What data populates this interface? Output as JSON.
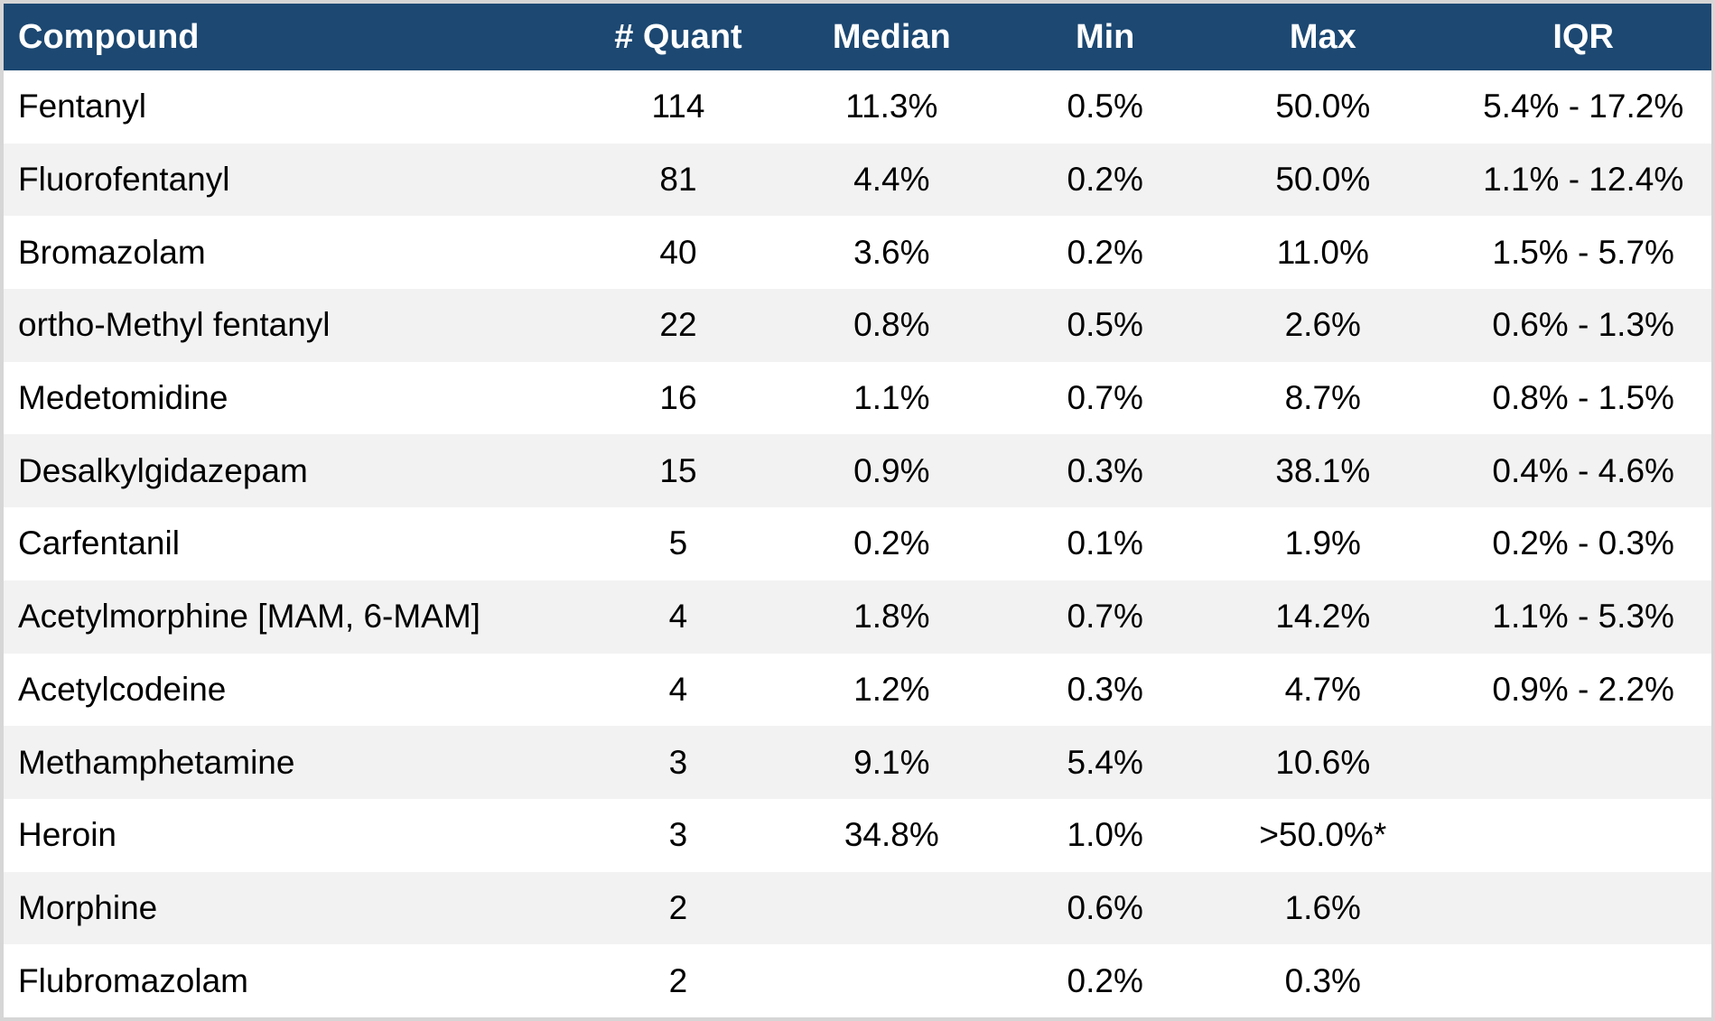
{
  "colors": {
    "header_bg": "#1c4872",
    "header_text": "#ffffff",
    "row_bg": "#ffffff",
    "row_alt_bg": "#f2f2f2",
    "outer_border": "#d6d6d6",
    "body_text": "#000000"
  },
  "chart_data": {
    "type": "table",
    "title": "",
    "columns": [
      {
        "key": "compound",
        "label": "Compound",
        "align": "left"
      },
      {
        "key": "quant",
        "label": "# Quant",
        "align": "center"
      },
      {
        "key": "median",
        "label": "Median",
        "align": "center"
      },
      {
        "key": "min",
        "label": "Min",
        "align": "center"
      },
      {
        "key": "max",
        "label": "Max",
        "align": "center"
      },
      {
        "key": "iqr",
        "label": "IQR",
        "align": "center"
      }
    ],
    "rows": [
      {
        "compound": "Fentanyl",
        "quant": "114",
        "median": "11.3%",
        "min": "0.5%",
        "max": "50.0%",
        "iqr": "5.4% - 17.2%"
      },
      {
        "compound": "Fluorofentanyl",
        "quant": "81",
        "median": "4.4%",
        "min": "0.2%",
        "max": "50.0%",
        "iqr": "1.1% - 12.4%"
      },
      {
        "compound": "Bromazolam",
        "quant": "40",
        "median": "3.6%",
        "min": "0.2%",
        "max": "11.0%",
        "iqr": "1.5% - 5.7%"
      },
      {
        "compound": "ortho-Methyl fentanyl",
        "quant": "22",
        "median": "0.8%",
        "min": "0.5%",
        "max": "2.6%",
        "iqr": "0.6% - 1.3%"
      },
      {
        "compound": "Medetomidine",
        "quant": "16",
        "median": "1.1%",
        "min": "0.7%",
        "max": "8.7%",
        "iqr": "0.8% - 1.5%"
      },
      {
        "compound": "Desalkylgidazepam",
        "quant": "15",
        "median": "0.9%",
        "min": "0.3%",
        "max": "38.1%",
        "iqr": "0.4% - 4.6%"
      },
      {
        "compound": "Carfentanil",
        "quant": "5",
        "median": "0.2%",
        "min": "0.1%",
        "max": "1.9%",
        "iqr": "0.2% - 0.3%"
      },
      {
        "compound": "Acetylmorphine [MAM, 6-MAM]",
        "quant": "4",
        "median": "1.8%",
        "min": "0.7%",
        "max": "14.2%",
        "iqr": "1.1% - 5.3%"
      },
      {
        "compound": "Acetylcodeine",
        "quant": "4",
        "median": "1.2%",
        "min": "0.3%",
        "max": "4.7%",
        "iqr": "0.9% - 2.2%"
      },
      {
        "compound": "Methamphetamine",
        "quant": "3",
        "median": "9.1%",
        "min": "5.4%",
        "max": "10.6%",
        "iqr": ""
      },
      {
        "compound": "Heroin",
        "quant": "3",
        "median": "34.8%",
        "min": "1.0%",
        "max": ">50.0%*",
        "iqr": ""
      },
      {
        "compound": "Morphine",
        "quant": "2",
        "median": "",
        "min": "0.6%",
        "max": "1.6%",
        "iqr": ""
      },
      {
        "compound": "Flubromazolam",
        "quant": "2",
        "median": "",
        "min": "0.2%",
        "max": "0.3%",
        "iqr": ""
      }
    ]
  }
}
